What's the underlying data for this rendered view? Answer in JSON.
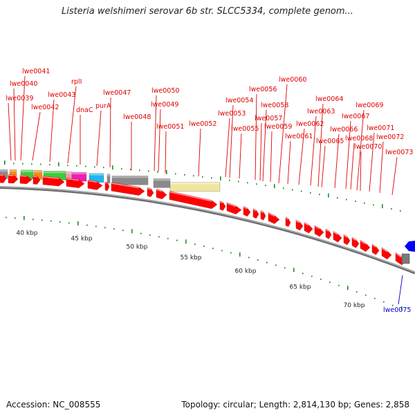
{
  "title": "Listeria welshimeri serovar 6b str. SLCC5334, complete genom...",
  "footer": {
    "accession": "Accession: NC_008555",
    "summary": "Topology: circular; Length: 2,814,130 bp; Genes: 2,858"
  },
  "colors": {
    "forward_gene": "#ff0000",
    "reverse_gene": "#0000ff",
    "label_red": "#e00000",
    "label_blue": "#0000cc",
    "backbone": "#808080",
    "tick": "#228b22"
  },
  "kbp_labels": [
    "40 kbp",
    "45 kbp",
    "50 kbp",
    "55 kbp",
    "60 kbp",
    "65 kbp",
    "70 kbp"
  ],
  "gene_labels": [
    "lwe0041",
    "lwe0040",
    "lwe0039",
    "lwe0042",
    "lwe0043",
    "rplI",
    "dnaC",
    "purA",
    "lwe0047",
    "lwe0048",
    "lwe0050",
    "lwe0049",
    "lwe0051",
    "lwe0052",
    "lwe0053",
    "lwe0054",
    "lwe0055",
    "lwe0056",
    "lwe0057",
    "lwe0058",
    "lwe0059",
    "lwe0060",
    "lwe0061",
    "lwe0062",
    "lwe0063",
    "lwe0064",
    "lwe0065",
    "lwe0066",
    "lwe0067",
    "lwe0068",
    "lwe0069",
    "lwe0070",
    "lwe0071",
    "lwe0072",
    "lwe0073"
  ],
  "reverse_label": "lwe0075"
}
